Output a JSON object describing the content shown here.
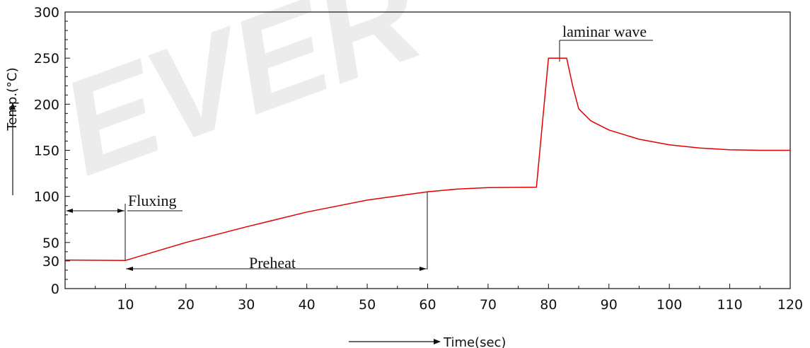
{
  "chart_data": {
    "type": "line",
    "title": "",
    "xlabel": "Time(sec)",
    "ylabel": "Temp.(°C)",
    "xlim": [
      0,
      120
    ],
    "ylim": [
      0,
      300
    ],
    "x_ticks": [
      10,
      20,
      30,
      40,
      50,
      60,
      70,
      80,
      90,
      100,
      110,
      120
    ],
    "y_ticks": [
      0,
      30,
      50,
      100,
      150,
      200,
      250,
      300
    ],
    "grid": false,
    "series": [
      {
        "color": "#e00000",
        "points": [
          [
            0,
            31
          ],
          [
            10,
            30.5
          ],
          [
            20,
            50
          ],
          [
            30,
            67
          ],
          [
            40,
            83
          ],
          [
            50,
            96
          ],
          [
            60,
            105
          ],
          [
            65,
            108
          ],
          [
            70,
            109.5
          ],
          [
            78,
            110
          ],
          [
            80,
            250
          ],
          [
            83,
            250
          ],
          [
            84,
            220
          ],
          [
            85,
            195
          ],
          [
            87,
            182
          ],
          [
            90,
            172
          ],
          [
            95,
            162
          ],
          [
            100,
            156
          ],
          [
            105,
            152.5
          ],
          [
            110,
            150.5
          ],
          [
            115,
            150
          ],
          [
            120,
            150
          ]
        ]
      }
    ],
    "annotations": [
      {
        "label": "Fluxing",
        "x_start": 0,
        "x_end": 10,
        "y": 85
      },
      {
        "label": "Preheat",
        "x_start": 10,
        "x_end": 60,
        "y": 22
      },
      {
        "label": "laminar wave",
        "x": 81.5,
        "y": 250
      }
    ],
    "watermark": "EVER"
  }
}
